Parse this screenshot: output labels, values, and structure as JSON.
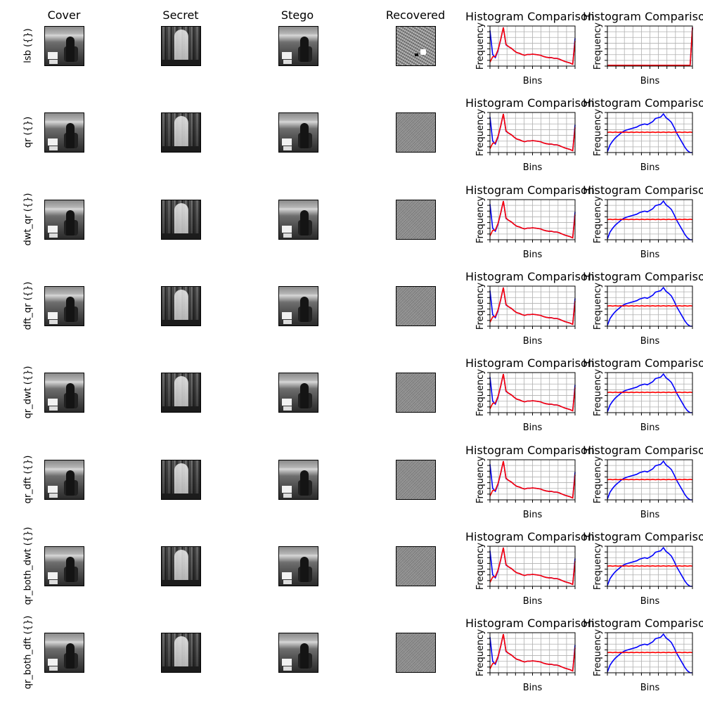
{
  "figure": {
    "column_titles": [
      "Cover",
      "Secret",
      "Stego",
      "Recovered"
    ],
    "row_labels": [
      "lsb ({})",
      "qr ({})",
      "dwt_qr ({})",
      "dft_qr ({})",
      "qr_dwt ({})",
      "qr_dft ({})",
      "qr_both_dwt ({})",
      "qr_both_dft ({})"
    ]
  },
  "chart_data": {
    "type": "line",
    "histogram_title": "Histogram Comparison",
    "xlabel": "Bins",
    "ylabel": "Frequency",
    "grid": true,
    "series_colors": {
      "blue": "#0000ff",
      "red": "#ff0000"
    },
    "bins": [
      0,
      8,
      16,
      24,
      32,
      40,
      48,
      56,
      64,
      72,
      80,
      88,
      96,
      104,
      112,
      120,
      128,
      136,
      144,
      152,
      160,
      168,
      176,
      184,
      192,
      200,
      208,
      216,
      224,
      232,
      240,
      248,
      255
    ],
    "cover_vs_stego": {
      "blue_series": [
        0.92,
        0.3,
        0.22,
        0.4,
        0.68,
        1.0,
        0.55,
        0.5,
        0.46,
        0.4,
        0.35,
        0.33,
        0.3,
        0.28,
        0.3,
        0.3,
        0.31,
        0.3,
        0.29,
        0.28,
        0.25,
        0.23,
        0.22,
        0.22,
        0.2,
        0.2,
        0.18,
        0.15,
        0.12,
        0.1,
        0.08,
        0.05,
        0.72
      ],
      "red_series": [
        0.1,
        0.24,
        0.25,
        0.42,
        0.69,
        1.0,
        0.56,
        0.5,
        0.46,
        0.4,
        0.35,
        0.33,
        0.3,
        0.28,
        0.3,
        0.3,
        0.31,
        0.3,
        0.29,
        0.28,
        0.25,
        0.23,
        0.22,
        0.22,
        0.2,
        0.2,
        0.18,
        0.15,
        0.12,
        0.1,
        0.08,
        0.05,
        0.65
      ]
    },
    "secret_vs_recovered_lsb": {
      "blue_series": [
        0.02,
        0.02,
        0.02,
        0.02,
        0.02,
        0.02,
        0.02,
        0.02,
        0.02,
        0.02,
        0.02,
        0.02,
        0.02,
        0.02,
        0.02,
        0.02,
        0.02,
        0.02,
        0.02,
        0.02,
        0.02,
        0.02,
        0.02,
        0.02,
        0.02,
        0.02,
        0.02,
        0.02,
        0.02,
        0.02,
        0.02,
        0.02,
        1.0
      ],
      "red_series": [
        0.02,
        0.02,
        0.02,
        0.02,
        0.02,
        0.02,
        0.02,
        0.02,
        0.02,
        0.02,
        0.02,
        0.02,
        0.02,
        0.02,
        0.02,
        0.02,
        0.02,
        0.02,
        0.02,
        0.02,
        0.02,
        0.02,
        0.02,
        0.02,
        0.02,
        0.02,
        0.02,
        0.02,
        0.02,
        0.02,
        0.02,
        0.02,
        1.0
      ]
    },
    "secret_vs_recovered": {
      "blue_series": [
        0.02,
        0.2,
        0.3,
        0.38,
        0.44,
        0.5,
        0.55,
        0.58,
        0.6,
        0.62,
        0.64,
        0.66,
        0.7,
        0.72,
        0.74,
        0.72,
        0.76,
        0.8,
        0.88,
        0.9,
        0.92,
        1.0,
        0.9,
        0.85,
        0.78,
        0.65,
        0.5,
        0.38,
        0.26,
        0.14,
        0.05,
        0.0,
        0.0
      ],
      "red_series": [
        0.52,
        0.53,
        0.52,
        0.53,
        0.52,
        0.53,
        0.52,
        0.53,
        0.52,
        0.53,
        0.52,
        0.53,
        0.52,
        0.53,
        0.52,
        0.53,
        0.52,
        0.53,
        0.52,
        0.53,
        0.52,
        0.53,
        0.52,
        0.53,
        0.52,
        0.53,
        0.52,
        0.53,
        0.52,
        0.53,
        0.52,
        0.53,
        0.52
      ]
    }
  }
}
